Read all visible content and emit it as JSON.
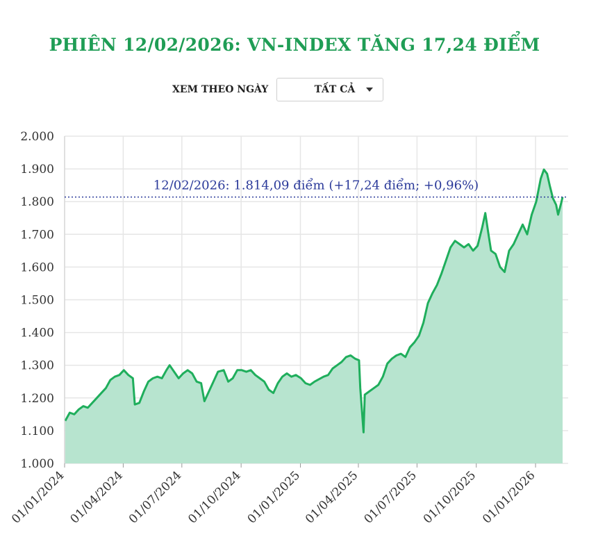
{
  "header": {
    "title": "PHIÊN 12/02/2026: VN-INDEX TĂNG 17,24 ĐIỂM"
  },
  "filter": {
    "label": "XEM THEO NGÀY",
    "selected": "TẤT CẢ",
    "icon": "chevron-down-icon"
  },
  "colors": {
    "title": "#1f9d55",
    "line": "#1fae5c",
    "area": "#b7e4cf",
    "annotation": "#2b3a9a",
    "grid": "#e6e6e6"
  },
  "chart_data": {
    "type": "area",
    "title": "",
    "xlabel": "",
    "ylabel": "",
    "ylim": [
      1000,
      2000
    ],
    "yticks": [
      "1.000",
      "1.100",
      "1.200",
      "1.300",
      "1.400",
      "1.500",
      "1.600",
      "1.700",
      "1.800",
      "1.900",
      "2.000"
    ],
    "ytick_values": [
      1000,
      1100,
      1200,
      1300,
      1400,
      1500,
      1600,
      1700,
      1800,
      1900,
      2000
    ],
    "xticks": [
      "01/01/2024",
      "01/04/2024",
      "01/07/2024",
      "01/10/2024",
      "01/01/2025",
      "01/04/2025",
      "01/07/2025",
      "01/10/2025",
      "01/01/2026"
    ],
    "xtick_dates": [
      "2024-01-01",
      "2024-04-01",
      "2024-07-01",
      "2024-10-01",
      "2025-01-01",
      "2025-04-01",
      "2025-07-01",
      "2025-10-01",
      "2026-01-01"
    ],
    "xrange": [
      "2024-01-01",
      "2026-02-12"
    ],
    "grid": true,
    "reference_value": 1814.09,
    "annotation": "12/02/2026: 1.814,09 điểm (+17,24 điểm; +0,96%)",
    "series": [
      {
        "points": [
          [
            "2024-01-02",
            1130
          ],
          [
            "2024-01-09",
            1155
          ],
          [
            "2024-01-16",
            1150
          ],
          [
            "2024-01-23",
            1165
          ],
          [
            "2024-01-30",
            1175
          ],
          [
            "2024-02-06",
            1170
          ],
          [
            "2024-02-20",
            1200
          ],
          [
            "2024-02-27",
            1215
          ],
          [
            "2024-03-05",
            1230
          ],
          [
            "2024-03-12",
            1255
          ],
          [
            "2024-03-19",
            1265
          ],
          [
            "2024-03-26",
            1270
          ],
          [
            "2024-04-02",
            1285
          ],
          [
            "2024-04-09",
            1270
          ],
          [
            "2024-04-16",
            1260
          ],
          [
            "2024-04-19",
            1180
          ],
          [
            "2024-04-26",
            1185
          ],
          [
            "2024-05-03",
            1220
          ],
          [
            "2024-05-10",
            1250
          ],
          [
            "2024-05-17",
            1260
          ],
          [
            "2024-05-24",
            1265
          ],
          [
            "2024-05-31",
            1260
          ],
          [
            "2024-06-07",
            1285
          ],
          [
            "2024-06-12",
            1300
          ],
          [
            "2024-06-19",
            1280
          ],
          [
            "2024-06-26",
            1260
          ],
          [
            "2024-07-03",
            1275
          ],
          [
            "2024-07-10",
            1285
          ],
          [
            "2024-07-17",
            1275
          ],
          [
            "2024-07-24",
            1250
          ],
          [
            "2024-07-31",
            1245
          ],
          [
            "2024-08-05",
            1190
          ],
          [
            "2024-08-12",
            1220
          ],
          [
            "2024-08-19",
            1250
          ],
          [
            "2024-08-26",
            1280
          ],
          [
            "2024-09-04",
            1285
          ],
          [
            "2024-09-11",
            1250
          ],
          [
            "2024-09-18",
            1260
          ],
          [
            "2024-09-25",
            1285
          ],
          [
            "2024-10-02",
            1285
          ],
          [
            "2024-10-09",
            1280
          ],
          [
            "2024-10-16",
            1285
          ],
          [
            "2024-10-23",
            1270
          ],
          [
            "2024-10-30",
            1260
          ],
          [
            "2024-11-06",
            1250
          ],
          [
            "2024-11-13",
            1225
          ],
          [
            "2024-11-20",
            1215
          ],
          [
            "2024-11-27",
            1245
          ],
          [
            "2024-12-04",
            1265
          ],
          [
            "2024-12-11",
            1275
          ],
          [
            "2024-12-18",
            1265
          ],
          [
            "2024-12-25",
            1270
          ],
          [
            "2025-01-02",
            1260
          ],
          [
            "2025-01-09",
            1245
          ],
          [
            "2025-01-16",
            1240
          ],
          [
            "2025-01-23",
            1250
          ],
          [
            "2025-02-06",
            1265
          ],
          [
            "2025-02-13",
            1270
          ],
          [
            "2025-02-20",
            1290
          ],
          [
            "2025-02-27",
            1300
          ],
          [
            "2025-03-06",
            1310
          ],
          [
            "2025-03-13",
            1325
          ],
          [
            "2025-03-20",
            1330
          ],
          [
            "2025-03-27",
            1320
          ],
          [
            "2025-04-02",
            1315
          ],
          [
            "2025-04-04",
            1230
          ],
          [
            "2025-04-09",
            1095
          ],
          [
            "2025-04-11",
            1210
          ],
          [
            "2025-04-18",
            1220
          ],
          [
            "2025-04-25",
            1230
          ],
          [
            "2025-05-02",
            1240
          ],
          [
            "2025-05-09",
            1265
          ],
          [
            "2025-05-16",
            1305
          ],
          [
            "2025-05-23",
            1320
          ],
          [
            "2025-05-30",
            1330
          ],
          [
            "2025-06-06",
            1335
          ],
          [
            "2025-06-13",
            1325
          ],
          [
            "2025-06-20",
            1355
          ],
          [
            "2025-06-27",
            1370
          ],
          [
            "2025-07-04",
            1390
          ],
          [
            "2025-07-11",
            1430
          ],
          [
            "2025-07-18",
            1490
          ],
          [
            "2025-07-25",
            1520
          ],
          [
            "2025-08-01",
            1545
          ],
          [
            "2025-08-08",
            1580
          ],
          [
            "2025-08-15",
            1620
          ],
          [
            "2025-08-22",
            1660
          ],
          [
            "2025-08-29",
            1680
          ],
          [
            "2025-09-05",
            1670
          ],
          [
            "2025-09-12",
            1660
          ],
          [
            "2025-09-19",
            1670
          ],
          [
            "2025-09-26",
            1650
          ],
          [
            "2025-10-03",
            1665
          ],
          [
            "2025-10-10",
            1720
          ],
          [
            "2025-10-15",
            1765
          ],
          [
            "2025-10-20",
            1700
          ],
          [
            "2025-10-24",
            1650
          ],
          [
            "2025-10-31",
            1640
          ],
          [
            "2025-11-07",
            1600
          ],
          [
            "2025-11-14",
            1585
          ],
          [
            "2025-11-21",
            1650
          ],
          [
            "2025-11-28",
            1670
          ],
          [
            "2025-12-05",
            1700
          ],
          [
            "2025-12-12",
            1730
          ],
          [
            "2025-12-19",
            1700
          ],
          [
            "2025-12-26",
            1760
          ],
          [
            "2026-01-02",
            1800
          ],
          [
            "2026-01-09",
            1870
          ],
          [
            "2026-01-14",
            1898
          ],
          [
            "2026-01-19",
            1885
          ],
          [
            "2026-01-23",
            1850
          ],
          [
            "2026-01-28",
            1810
          ],
          [
            "2026-02-02",
            1790
          ],
          [
            "2026-02-05",
            1760
          ],
          [
            "2026-02-10",
            1797
          ],
          [
            "2026-02-12",
            1814.09
          ]
        ]
      }
    ]
  }
}
